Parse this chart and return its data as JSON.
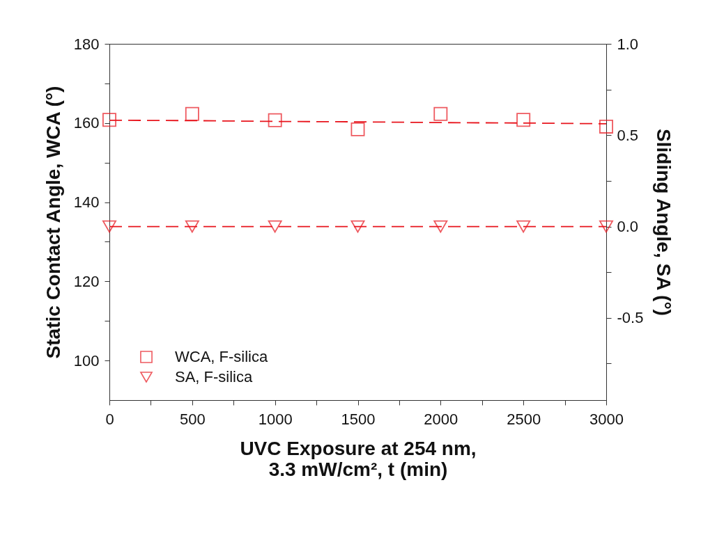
{
  "chart_data": {
    "type": "scatter",
    "xlabel": "UVC Exposure at 254 nm,\n3.3 mW/cm², t (min)",
    "ylabel": "Static Contact Angle, WCA (°)",
    "y2label": "Sliding Angle, SA (°)",
    "x": [
      0,
      500,
      1000,
      1500,
      2000,
      2500,
      3000
    ],
    "series": [
      {
        "name": "WCA, F-silica",
        "color": "#e8141c",
        "marker": "square",
        "values": [
          160.8,
          162.3,
          160.7,
          158.4,
          162.3,
          160.8,
          159.1
        ]
      },
      {
        "name": "SA, F-silica",
        "color": "#e8141c",
        "marker": "triangle",
        "axis": "y2",
        "values": [
          0,
          0,
          0,
          0,
          0,
          0,
          0
        ]
      },
      {
        "type": "line",
        "color": "#e8141c",
        "line_style": "dashed",
        "marker": "none",
        "values": [
          160.7,
          160.6,
          160.4,
          160.3,
          160.1,
          160,
          159.8
        ]
      },
      {
        "type": "line",
        "color": "#e8141c",
        "line_style": "dashed",
        "marker": "none",
        "axis": "y2",
        "values": [
          0,
          0,
          0,
          0,
          0,
          0,
          0
        ]
      }
    ],
    "xlim": [
      0,
      3000
    ],
    "xticks": [
      0,
      {
        "value": 250,
        "label": null
      },
      500,
      {
        "value": 750,
        "label": null
      },
      1000,
      {
        "value": 1250,
        "label": null
      },
      1500,
      {
        "value": 1750,
        "label": null
      },
      2000,
      {
        "value": 2250,
        "label": null
      },
      2500,
      {
        "value": 2750,
        "label": null
      },
      3000
    ],
    "ylim": [
      90,
      180
    ],
    "yticks": [
      100,
      {
        "value": 110,
        "label": null
      },
      120,
      {
        "value": 130,
        "label": null
      },
      140,
      {
        "value": 150,
        "label": null
      },
      160,
      {
        "value": 170,
        "label": null
      },
      180
    ],
    "y2lim": [
      -0.95,
      1.0
    ],
    "y2ticks": [
      {
        "value": -0.75,
        "label": null
      },
      {
        "value": -0.5,
        "label": "-0.5"
      },
      {
        "value": -0.25,
        "label": null
      },
      {
        "value": 0,
        "label": "0.0"
      },
      {
        "value": 0.25,
        "label": null
      },
      {
        "value": 0.5,
        "label": "0.5"
      },
      {
        "value": 0.75,
        "label": null
      },
      {
        "value": 1,
        "label": "1.0"
      }
    ],
    "grid": false,
    "legend": "bottom left"
  }
}
